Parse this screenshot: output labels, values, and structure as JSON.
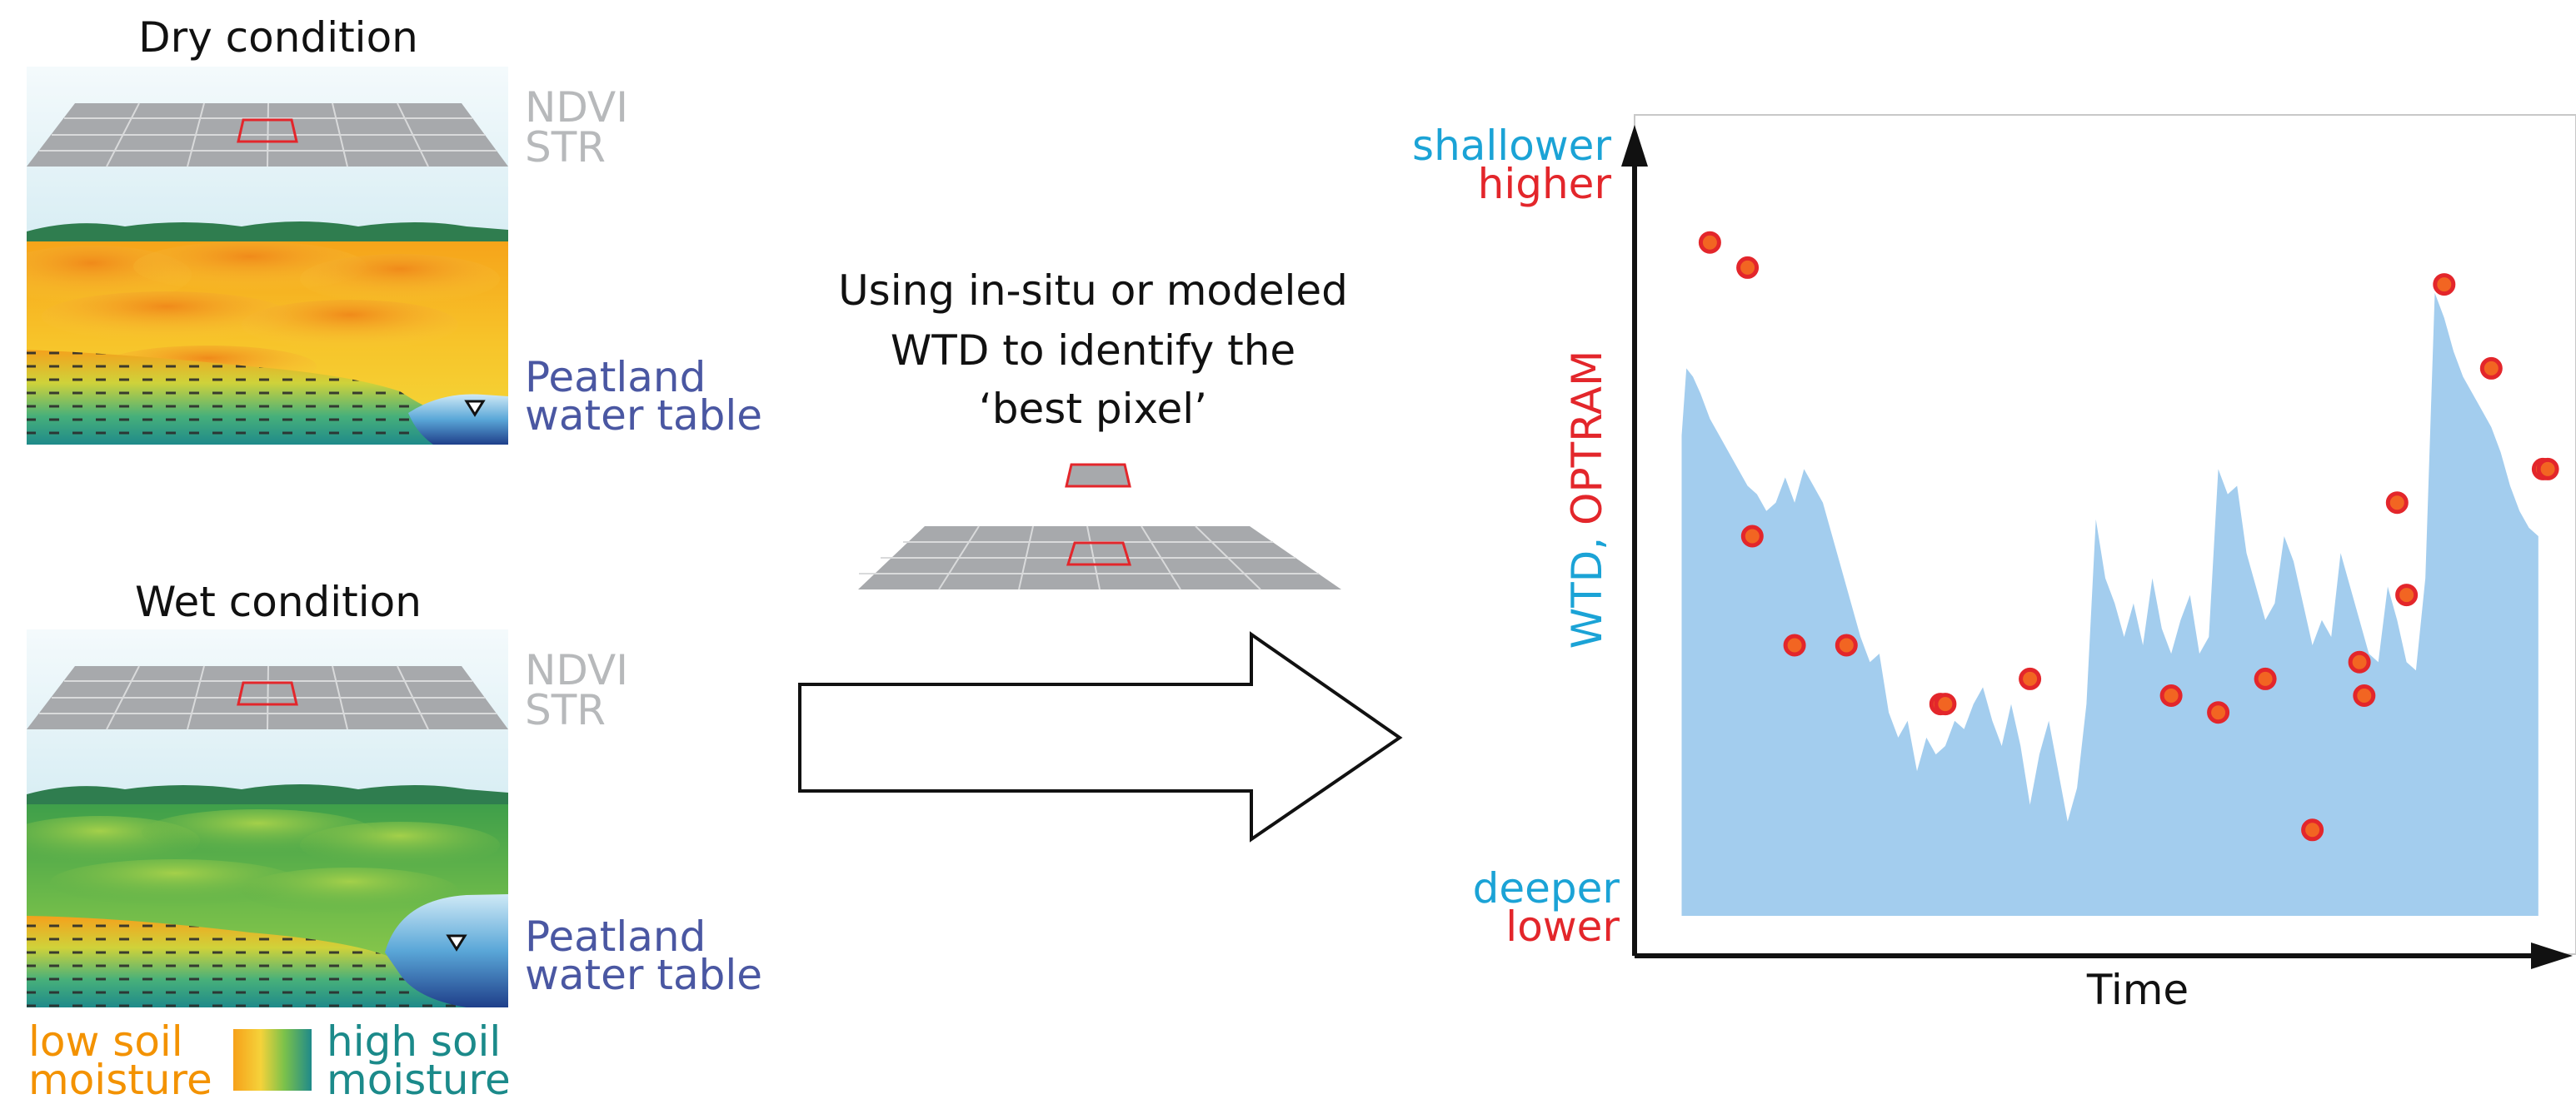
{
  "panels": {
    "dry": {
      "title": "Dry condition",
      "layer_top": "NDVI",
      "layer_bottom": "STR",
      "water_line1": "Peatland",
      "water_line2": "water table"
    },
    "wet": {
      "title": "Wet condition",
      "layer_top": "NDVI",
      "layer_bottom": "STR",
      "water_line1": "Peatland",
      "water_line2": "water table"
    }
  },
  "legend": {
    "low_line1": "low soil",
    "low_line2": "moisture",
    "high_line1": "high soil",
    "high_line2": "moisture",
    "low_color": "#f39200",
    "high_color": "#1b8a8a"
  },
  "middle": {
    "line1": "Using in-situ or modeled",
    "line2": "WTD to identify the",
    "line3": "‘best pixel’"
  },
  "colors": {
    "sky": "#e8f4f8",
    "grid_plane": "#a7a9ac",
    "selected_pixel": "#e3262b",
    "hills": "#2f7d4f",
    "water_label": "#4a57a2",
    "wtd_blue": "#1ba3d6",
    "optram_red": "#e3262b",
    "area_fill": "#a3cdee",
    "dot_fill": "#f26522",
    "dot_stroke": "#e3262b"
  },
  "chart_data": {
    "type": "area",
    "xlabel": "Time",
    "ylabel_part1": "WTD,",
    "ylabel_part2": "OPTRAM",
    "y_top_label1": "shallower",
    "y_top_label2": "higher",
    "y_bottom_label1": "deeper",
    "y_bottom_label2": "lower",
    "ylim": [
      0,
      1
    ],
    "xlim": [
      0,
      1
    ],
    "series": [
      {
        "kind": "area",
        "values": [
          [
            0.05,
            0.62
          ],
          [
            0.055,
            0.7
          ],
          [
            0.062,
            0.69
          ],
          [
            0.07,
            0.67
          ],
          [
            0.08,
            0.64
          ],
          [
            0.09,
            0.62
          ],
          [
            0.1,
            0.6
          ],
          [
            0.11,
            0.58
          ],
          [
            0.12,
            0.56
          ],
          [
            0.13,
            0.55
          ],
          [
            0.14,
            0.53
          ],
          [
            0.15,
            0.54
          ],
          [
            0.16,
            0.57
          ],
          [
            0.17,
            0.54
          ],
          [
            0.18,
            0.58
          ],
          [
            0.19,
            0.56
          ],
          [
            0.2,
            0.54
          ],
          [
            0.21,
            0.5
          ],
          [
            0.22,
            0.46
          ],
          [
            0.23,
            0.42
          ],
          [
            0.24,
            0.38
          ],
          [
            0.25,
            0.35
          ],
          [
            0.26,
            0.36
          ],
          [
            0.27,
            0.29
          ],
          [
            0.28,
            0.26
          ],
          [
            0.29,
            0.28
          ],
          [
            0.3,
            0.22
          ],
          [
            0.31,
            0.26
          ],
          [
            0.32,
            0.24
          ],
          [
            0.33,
            0.25
          ],
          [
            0.34,
            0.28
          ],
          [
            0.35,
            0.27
          ],
          [
            0.36,
            0.3
          ],
          [
            0.37,
            0.32
          ],
          [
            0.38,
            0.28
          ],
          [
            0.39,
            0.25
          ],
          [
            0.4,
            0.3
          ],
          [
            0.41,
            0.25
          ],
          [
            0.42,
            0.18
          ],
          [
            0.43,
            0.24
          ],
          [
            0.44,
            0.28
          ],
          [
            0.45,
            0.22
          ],
          [
            0.46,
            0.16
          ],
          [
            0.47,
            0.2
          ],
          [
            0.48,
            0.3
          ],
          [
            0.49,
            0.52
          ],
          [
            0.5,
            0.45
          ],
          [
            0.51,
            0.42
          ],
          [
            0.52,
            0.38
          ],
          [
            0.53,
            0.42
          ],
          [
            0.54,
            0.37
          ],
          [
            0.55,
            0.45
          ],
          [
            0.56,
            0.39
          ],
          [
            0.57,
            0.36
          ],
          [
            0.58,
            0.4
          ],
          [
            0.59,
            0.43
          ],
          [
            0.6,
            0.36
          ],
          [
            0.61,
            0.38
          ],
          [
            0.62,
            0.58
          ],
          [
            0.63,
            0.55
          ],
          [
            0.64,
            0.56
          ],
          [
            0.65,
            0.48
          ],
          [
            0.66,
            0.44
          ],
          [
            0.67,
            0.4
          ],
          [
            0.68,
            0.42
          ],
          [
            0.69,
            0.5
          ],
          [
            0.7,
            0.47
          ],
          [
            0.71,
            0.42
          ],
          [
            0.72,
            0.37
          ],
          [
            0.73,
            0.4
          ],
          [
            0.74,
            0.38
          ],
          [
            0.75,
            0.48
          ],
          [
            0.76,
            0.44
          ],
          [
            0.77,
            0.4
          ],
          [
            0.78,
            0.36
          ],
          [
            0.79,
            0.35
          ],
          [
            0.8,
            0.44
          ],
          [
            0.81,
            0.4
          ],
          [
            0.82,
            0.35
          ],
          [
            0.83,
            0.34
          ],
          [
            0.84,
            0.45
          ],
          [
            0.85,
            0.79
          ],
          [
            0.86,
            0.76
          ],
          [
            0.87,
            0.72
          ],
          [
            0.88,
            0.69
          ],
          [
            0.89,
            0.67
          ],
          [
            0.9,
            0.65
          ],
          [
            0.91,
            0.63
          ],
          [
            0.92,
            0.6
          ],
          [
            0.93,
            0.56
          ],
          [
            0.94,
            0.53
          ],
          [
            0.95,
            0.51
          ],
          [
            0.96,
            0.5
          ]
        ]
      },
      {
        "kind": "scatter",
        "values": [
          [
            0.08,
            0.85
          ],
          [
            0.12,
            0.82
          ],
          [
            0.125,
            0.5
          ],
          [
            0.17,
            0.37
          ],
          [
            0.225,
            0.37
          ],
          [
            0.325,
            0.3
          ],
          [
            0.33,
            0.3
          ],
          [
            0.42,
            0.33
          ],
          [
            0.57,
            0.31
          ],
          [
            0.62,
            0.29
          ],
          [
            0.67,
            0.33
          ],
          [
            0.72,
            0.15
          ],
          [
            0.77,
            0.35
          ],
          [
            0.775,
            0.31
          ],
          [
            0.81,
            0.54
          ],
          [
            0.82,
            0.43
          ],
          [
            0.86,
            0.8
          ],
          [
            0.91,
            0.7
          ],
          [
            0.965,
            0.58
          ],
          [
            0.97,
            0.58
          ]
        ]
      }
    ]
  }
}
